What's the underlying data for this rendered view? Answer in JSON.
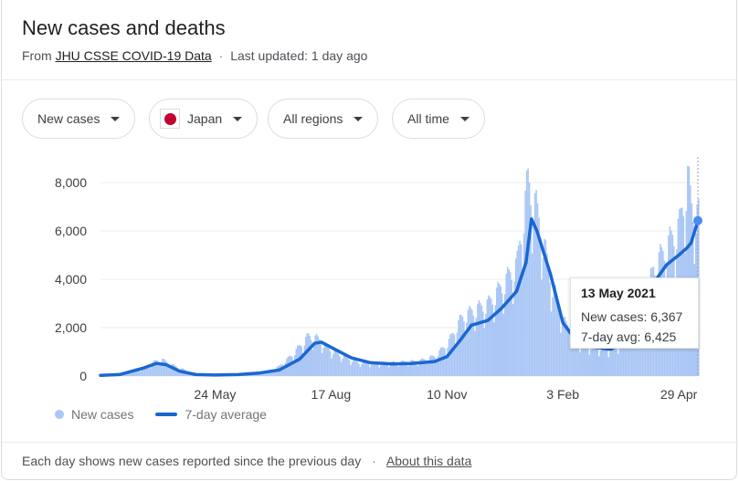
{
  "header": {
    "title": "New cases and deaths",
    "source_prefix": "From",
    "source_link": "JHU CSSE COVID-19 Data",
    "separator": "·",
    "updated": "Last updated: 1 day ago"
  },
  "filters": {
    "metric": "New cases",
    "region": "Japan",
    "region_flag_icon": "japan-flag-icon",
    "subregion": "All regions",
    "time_range": "All time"
  },
  "tooltip": {
    "date": "13 May 2021",
    "new_cases": "New cases: 6,367",
    "avg": "7-day avg: 6,425"
  },
  "footer": {
    "note": "Each day shows new cases reported since the previous day",
    "separator": "·",
    "link": "About this data"
  },
  "colors": {
    "bars": "#a9c6f5",
    "average_line": "#1a67d2",
    "grid": "#ebebeb",
    "axis_text": "#3c4043"
  },
  "chart_data": {
    "type": "bar",
    "title": "",
    "xlabel": "",
    "ylabel": "",
    "ylim": [
      0,
      8000
    ],
    "yticks": [
      0,
      2000,
      4000,
      6000,
      8000
    ],
    "ytick_labels": [
      "0",
      "2,000",
      "4,000",
      "6,000",
      "8,000"
    ],
    "xtick_labels": [
      "24 May",
      "17 Aug",
      "10 Nov",
      "3 Feb",
      "29 Apr"
    ],
    "xtick_dates": [
      "2020-05-24",
      "2020-08-17",
      "2020-11-10",
      "2021-02-03",
      "2021-04-29"
    ],
    "xlim": [
      "2020-03-01",
      "2021-05-13"
    ],
    "grid": true,
    "legend_position": "bottom-left",
    "highlighted": {
      "date": "2021-05-13",
      "new_cases": 6367,
      "avg": 6425
    },
    "series": [
      {
        "name": "New cases",
        "kind": "bars",
        "dates": [
          "2020-03-01",
          "2020-03-15",
          "2020-04-01",
          "2020-04-10",
          "2020-04-15",
          "2020-04-20",
          "2020-05-01",
          "2020-05-10",
          "2020-05-20",
          "2020-06-01",
          "2020-06-15",
          "2020-07-01",
          "2020-07-10",
          "2020-07-20",
          "2020-07-31",
          "2020-08-07",
          "2020-08-15",
          "2020-08-25",
          "2020-09-05",
          "2020-09-20",
          "2020-10-05",
          "2020-10-20",
          "2020-11-01",
          "2020-11-10",
          "2020-11-20",
          "2020-11-28",
          "2020-12-10",
          "2020-12-20",
          "2020-12-31",
          "2021-01-08",
          "2021-01-15",
          "2021-01-25",
          "2021-02-03",
          "2021-02-15",
          "2021-02-25",
          "2021-03-10",
          "2021-03-20",
          "2021-04-01",
          "2021-04-10",
          "2021-04-20",
          "2021-04-29",
          "2021-05-05",
          "2021-05-08",
          "2021-05-13"
        ],
        "values": [
          30,
          70,
          300,
          600,
          650,
          500,
          250,
          60,
          40,
          50,
          80,
          150,
          400,
          900,
          1600,
          1500,
          1100,
          800,
          550,
          500,
          550,
          600,
          800,
          1300,
          2300,
          2600,
          2900,
          3600,
          4500,
          7800,
          6500,
          3800,
          2200,
          1400,
          1200,
          1100,
          1500,
          2400,
          4300,
          5200,
          6000,
          7900,
          6800,
          6367
        ]
      },
      {
        "name": "7-day average",
        "kind": "line",
        "dates": [
          "2020-03-01",
          "2020-03-15",
          "2020-04-01",
          "2020-04-11",
          "2020-04-18",
          "2020-04-28",
          "2020-05-10",
          "2020-05-24",
          "2020-06-10",
          "2020-06-25",
          "2020-07-10",
          "2020-07-25",
          "2020-08-05",
          "2020-08-10",
          "2020-08-20",
          "2020-09-01",
          "2020-09-15",
          "2020-10-01",
          "2020-10-15",
          "2020-11-01",
          "2020-11-10",
          "2020-11-20",
          "2020-11-28",
          "2020-12-10",
          "2020-12-20",
          "2020-12-31",
          "2021-01-07",
          "2021-01-11",
          "2021-01-15",
          "2021-01-25",
          "2021-02-03",
          "2021-02-15",
          "2021-02-25",
          "2021-03-10",
          "2021-03-20",
          "2021-04-01",
          "2021-04-10",
          "2021-04-20",
          "2021-04-29",
          "2021-05-05",
          "2021-05-08",
          "2021-05-13"
        ],
        "values": [
          30,
          60,
          320,
          520,
          470,
          200,
          60,
          40,
          60,
          120,
          250,
          700,
          1350,
          1400,
          1100,
          750,
          550,
          500,
          520,
          600,
          800,
          1500,
          2100,
          2300,
          2800,
          3500,
          4700,
          6500,
          6000,
          4200,
          2200,
          1300,
          1200,
          1100,
          1400,
          2300,
          3800,
          4600,
          5000,
          5300,
          5500,
          6425
        ]
      }
    ]
  }
}
